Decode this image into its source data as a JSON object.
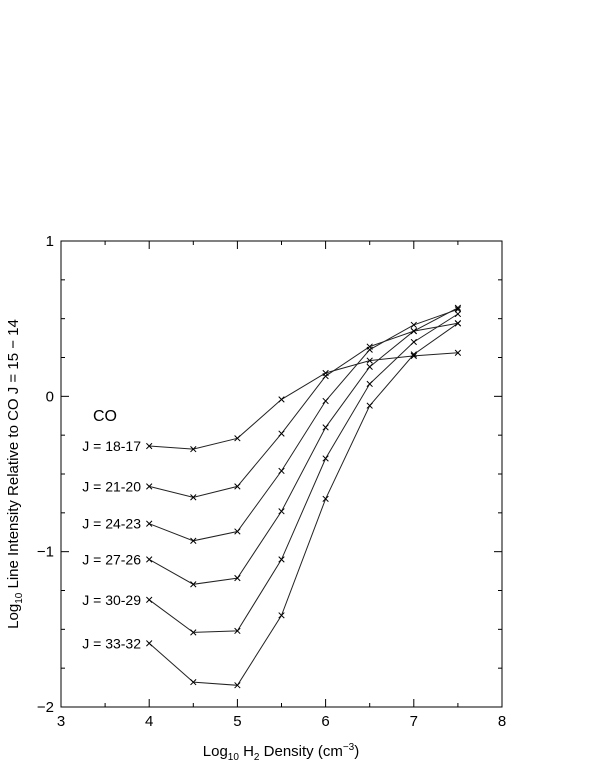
{
  "chart_data": {
    "type": "line",
    "xlabel": {
      "prefix": "Log",
      "prefix_sub": "10",
      "main": " H",
      "main_sub": "2",
      "rest": " Density (cm",
      "rest_sup": "−3",
      "close": ")"
    },
    "ylabel": {
      "prefix": "Log",
      "prefix_sub": "10",
      "rest": " Line Intensity Relative to CO J = 15 − 14"
    },
    "xlim": [
      3,
      8
    ],
    "ylim": [
      -2,
      1
    ],
    "x_ticks": [
      "3",
      "4",
      "5",
      "6",
      "7",
      "8"
    ],
    "y_ticks": [
      "−2",
      "−1",
      "0",
      "1"
    ],
    "x_tick_values": [
      3,
      4,
      5,
      6,
      7,
      8
    ],
    "y_tick_values": [
      -2,
      -1,
      0,
      1
    ],
    "annotation": "CO",
    "x": [
      4.0,
      4.5,
      5.0,
      5.5,
      6.0,
      6.5,
      7.0,
      7.5
    ],
    "series": [
      {
        "name": "J = 18-17",
        "values": [
          -0.32,
          -0.34,
          -0.27,
          -0.02,
          0.15,
          0.23,
          0.26,
          0.28
        ]
      },
      {
        "name": "J = 21-20",
        "values": [
          -0.58,
          -0.65,
          -0.58,
          -0.24,
          0.13,
          0.32,
          0.42,
          0.47
        ]
      },
      {
        "name": "J = 24-23",
        "values": [
          -0.82,
          -0.93,
          -0.87,
          -0.48,
          -0.03,
          0.3,
          0.46,
          0.56
        ]
      },
      {
        "name": "J = 27-26",
        "values": [
          -1.05,
          -1.21,
          -1.17,
          -0.74,
          -0.2,
          0.19,
          0.42,
          0.57
        ]
      },
      {
        "name": "J = 30-29",
        "values": [
          -1.31,
          -1.52,
          -1.51,
          -1.05,
          -0.4,
          0.08,
          0.35,
          0.53
        ]
      },
      {
        "name": "J = 33-32",
        "values": [
          -1.59,
          -1.84,
          -1.86,
          -1.41,
          -0.66,
          -0.06,
          0.27,
          0.47
        ]
      }
    ]
  }
}
